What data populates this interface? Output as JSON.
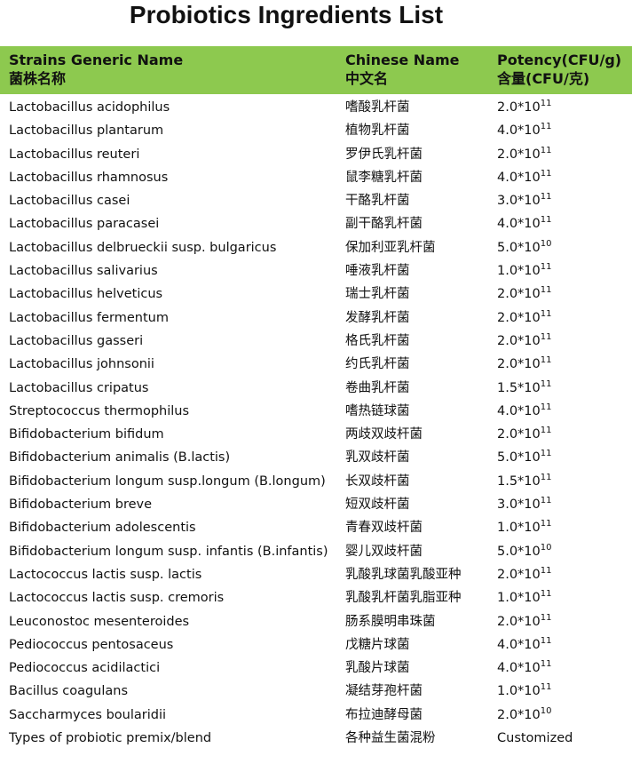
{
  "title": "Probiotics  Ingredients List",
  "header": {
    "col1": "Strains Generic Name",
    "col1_cn": "菌株名称",
    "col2": "Chinese Name",
    "col2_cn": "中文名",
    "col3": "Potency(CFU/g)",
    "col3_cn": "含量(CFU/克)"
  },
  "header_color": "#8dc94f",
  "rows": [
    {
      "name": "Lactobacillus acidophilus",
      "cn": "嗜酸乳杆菌",
      "base": "2.0*10",
      "exp": "11"
    },
    {
      "name": "Lactobacillus plantarum",
      "cn": "植物乳杆菌",
      "base": "4.0*10",
      "exp": "11"
    },
    {
      "name": "Lactobacillus reuteri",
      "cn": "罗伊氏乳杆菌",
      "base": "2.0*10",
      "exp": "11"
    },
    {
      "name": "Lactobacillus rhamnosus",
      "cn": "鼠李糖乳杆菌",
      "base": "4.0*10",
      "exp": "11"
    },
    {
      "name": "Lactobacillus casei",
      "cn": "干酪乳杆菌",
      "base": "3.0*10",
      "exp": "11"
    },
    {
      "name": "Lactobacillus paracasei",
      "cn": "副干酪乳杆菌",
      "base": "4.0*10",
      "exp": "11"
    },
    {
      "name": "Lactobacillus delbrueckii susp. bulgaricus",
      "cn": "保加利亚乳杆菌",
      "base": "5.0*10",
      "exp": "10"
    },
    {
      "name": "Lactobacillus salivarius",
      "cn": "唾液乳杆菌",
      "base": "1.0*10",
      "exp": "11"
    },
    {
      "name": "Lactobacillus helveticus",
      "cn": "瑞士乳杆菌",
      "base": "2.0*10",
      "exp": "11"
    },
    {
      "name": "Lactobacillus fermentum",
      "cn": "发酵乳杆菌",
      "base": "2.0*10",
      "exp": "11"
    },
    {
      "name": "Lactobacillus gasseri",
      "cn": "格氏乳杆菌",
      "base": "2.0*10",
      "exp": "11"
    },
    {
      "name": "Lactobacillus johnsonii",
      "cn": "约氏乳杆菌",
      "base": "2.0*10",
      "exp": "11"
    },
    {
      "name": "Lactobacillus cripatus",
      "cn": "卷曲乳杆菌",
      "base": "1.5*10",
      "exp": "11"
    },
    {
      "name": "Streptococcus thermophilus",
      "cn": "嗜热链球菌",
      "base": "4.0*10",
      "exp": "11"
    },
    {
      "name": "Bifidobacterium bifidum",
      "cn": "两歧双歧杆菌",
      "base": "2.0*10",
      "exp": "11"
    },
    {
      "name": "Bifidobacterium animalis (B.lactis)",
      "cn": "乳双歧杆菌",
      "base": "5.0*10",
      "exp": "11"
    },
    {
      "name": "Bifidobacterium longum susp.longum (B.longum)",
      "cn": "长双歧杆菌",
      "base": "1.5*10",
      "exp": "11"
    },
    {
      "name": "Bifidobacterium breve",
      "cn": "短双歧杆菌",
      "base": "3.0*10",
      "exp": "11"
    },
    {
      "name": "Bifidobacterium adolescentis",
      "cn": "青春双歧杆菌",
      "base": "1.0*10",
      "exp": "11"
    },
    {
      "name": "Bifidobacterium longum susp. infantis (B.infantis)",
      "cn": "婴儿双歧杆菌",
      "base": "5.0*10",
      "exp": "10"
    },
    {
      "name": "Lactococcus lactis susp. lactis",
      "cn": "乳酸乳球菌乳酸亚种",
      "base": "2.0*10",
      "exp": "11"
    },
    {
      "name": "Lactococcus lactis susp. cremoris",
      "cn": "乳酸乳杆菌乳脂亚种",
      "base": "1.0*10",
      "exp": "11"
    },
    {
      "name": "Leuconostoc mesenteroides",
      "cn": "肠系膜明串珠菌",
      "base": "2.0*10",
      "exp": "11"
    },
    {
      "name": "Pediococcus pentosaceus",
      "cn": "戊糖片球菌",
      "base": "4.0*10",
      "exp": "11"
    },
    {
      "name": "Pediococcus acidilactici",
      "cn": "乳酸片球菌",
      "base": "4.0*10",
      "exp": "11"
    },
    {
      "name": "Bacillus coagulans",
      "cn": "凝结芽孢杆菌",
      "base": "1.0*10",
      "exp": "11"
    },
    {
      "name": "Saccharmyces boularidii",
      "cn": "布拉迪酵母菌",
      "base": "2.0*10",
      "exp": "10"
    },
    {
      "name": "Types of probiotic premix/blend",
      "cn": "各种益生菌混粉",
      "base": "Customized",
      "exp": ""
    }
  ]
}
